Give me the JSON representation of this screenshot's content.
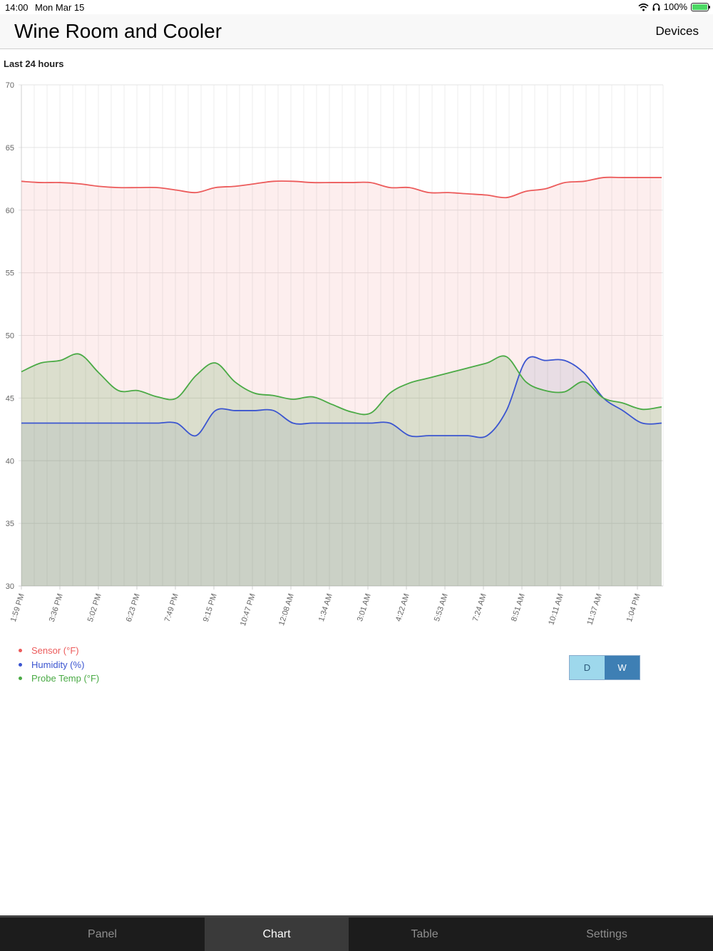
{
  "status_bar": {
    "time": "14:00",
    "date": "Mon Mar 15",
    "battery": "100%"
  },
  "header": {
    "title": "Wine Room and Cooler",
    "devices_label": "Devices"
  },
  "range_label": "Last 24 hours",
  "chart_data": {
    "type": "area",
    "x_ticks": [
      "1:59 PM",
      "3:36 PM",
      "5:02 PM",
      "6:23 PM",
      "7:49 PM",
      "9:15 PM",
      "10:47 PM",
      "12:08 AM",
      "1:34 AM",
      "3:01 AM",
      "4:22 AM",
      "5:53 AM",
      "7:24 AM",
      "8:51 AM",
      "10:11 AM",
      "11:37 AM",
      "1:04 PM"
    ],
    "y_ticks": [
      30,
      35,
      40,
      45,
      50,
      55,
      60,
      65,
      70
    ],
    "ylim": [
      30,
      70
    ],
    "grid": true,
    "legend_position": "bottom-left",
    "x": [
      0,
      0.5,
      1,
      1.5,
      2,
      2.5,
      3,
      3.5,
      4,
      4.5,
      5,
      5.5,
      6,
      6.5,
      7,
      7.5,
      8,
      8.5,
      9,
      9.5,
      10,
      10.5,
      11,
      11.5,
      12,
      12.5,
      13,
      13.5,
      14,
      14.5,
      15,
      15.5,
      16,
      16.5
    ],
    "series": [
      {
        "name": "Sensor (°F)",
        "color": "#ec5b5b",
        "fill": "rgba(236,91,91,0.10)",
        "values": [
          62.3,
          62.2,
          62.2,
          62.1,
          61.9,
          61.8,
          61.8,
          61.8,
          61.6,
          61.4,
          61.8,
          61.9,
          62.1,
          62.3,
          62.3,
          62.2,
          62.2,
          62.2,
          62.2,
          61.8,
          61.8,
          61.4,
          61.4,
          61.3,
          61.2,
          61.0,
          61.5,
          61.7,
          62.2,
          62.3,
          62.6,
          62.6,
          62.6,
          62.6
        ]
      },
      {
        "name": "Humidity (%)",
        "color": "#3b55d0",
        "fill": "rgba(80,100,160,0.12)",
        "values": [
          43,
          43,
          43,
          43,
          43,
          43,
          43,
          43,
          43,
          42,
          44,
          44,
          44,
          44,
          43,
          43,
          43,
          43,
          43,
          43,
          42,
          42,
          42,
          42,
          42,
          44,
          48,
          48,
          48,
          47,
          45,
          44,
          43,
          43
        ]
      },
      {
        "name": "Probe Temp (°F)",
        "color": "#4aaa45",
        "fill": "rgba(100,170,90,0.22)",
        "values": [
          47.1,
          47.8,
          48.0,
          48.5,
          47.0,
          45.6,
          45.6,
          45.1,
          45.0,
          46.8,
          47.8,
          46.3,
          45.4,
          45.2,
          44.9,
          45.1,
          44.5,
          43.9,
          43.8,
          45.4,
          46.2,
          46.6,
          47.0,
          47.4,
          47.8,
          48.3,
          46.3,
          45.6,
          45.5,
          46.3,
          45.0,
          44.6,
          44.1,
          44.3
        ]
      }
    ]
  },
  "toggle": {
    "day_label": "D",
    "week_label": "W",
    "active": "W",
    "colors": {
      "inactive": "#9ed8ec",
      "active": "#3e7fb4"
    }
  },
  "tabs": [
    {
      "label": "Panel",
      "active": false
    },
    {
      "label": "Chart",
      "active": true
    },
    {
      "label": "Table",
      "active": false
    },
    {
      "label": "Settings",
      "active": false
    }
  ]
}
